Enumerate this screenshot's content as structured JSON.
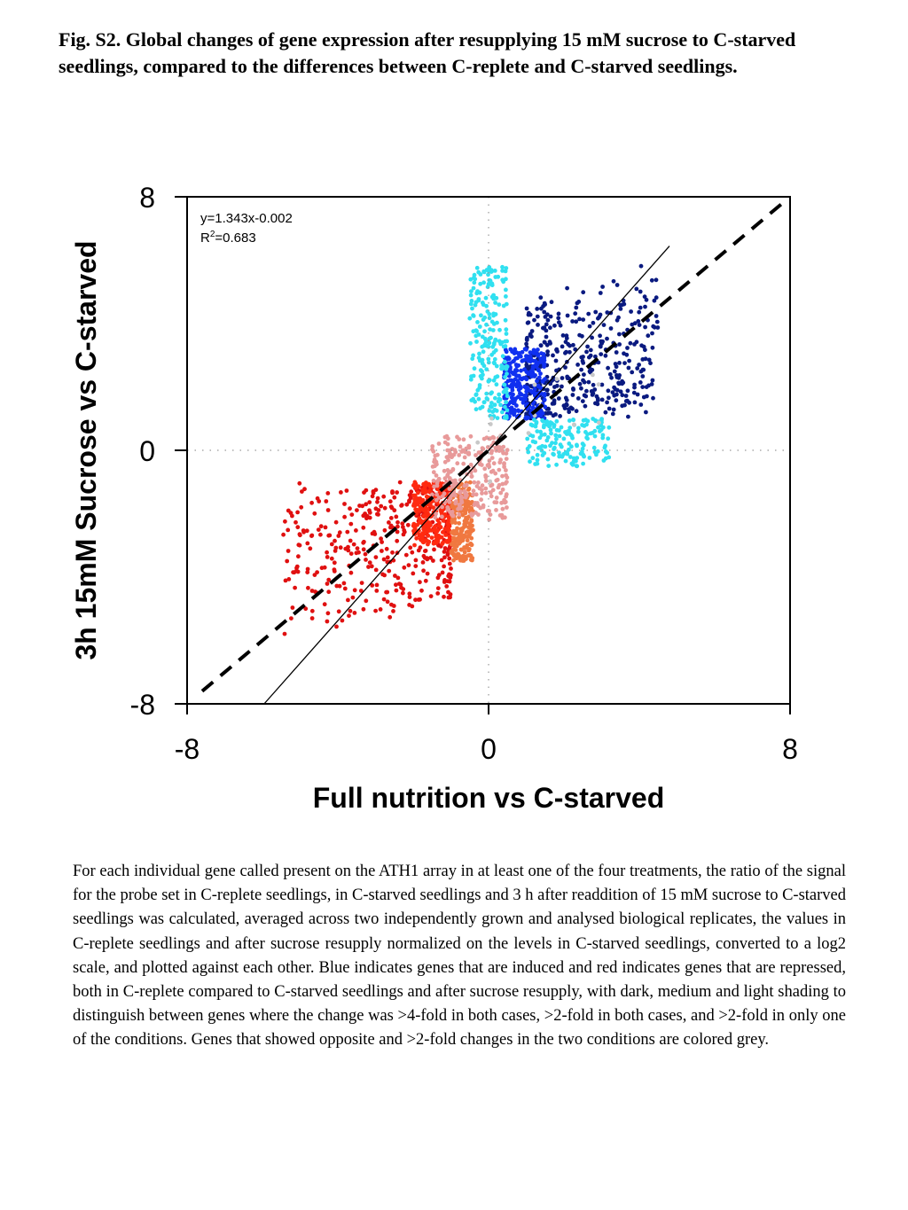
{
  "figure": {
    "caption": "Fig. S2. Global changes of gene expression after resupplying 15 mM sucrose to C-starved seedlings, compared to the differences between C-replete and C-starved seedlings.",
    "description": "For each individual gene called present on the ATH1 array in at least one of the four treatments, the ratio of the signal for the probe set in C-replete seedlings, in C-starved seedlings and 3 h after readdition of 15 mM sucrose to C-starved seedlings was calculated, averaged across two independently grown and analysed biological replicates, the values in C-replete seedlings and after sucrose resupply normalized on the levels in C-starved seedlings, converted to a log2 scale, and plotted against each other. Blue indicates genes that are induced and red indicates genes that are repressed,  both in C-replete compared to C-starved seedlings and after sucrose resupply, with dark, medium and light shading to distinguish between genes where the change was >4-fold in both cases, >2-fold in both cases, and >2-fold in only one of the conditions. Genes that showed opposite and >2-fold changes in the two conditions are colored grey."
  },
  "chart_data": {
    "type": "scatter",
    "xlabel": "Full nutrition vs C-starved",
    "ylabel": "3h 15mM Sucrose vs C-starved",
    "xlim": [
      -8,
      8
    ],
    "ylim": [
      -8,
      8
    ],
    "xticks": [
      "-8",
      "0",
      "8"
    ],
    "yticks": [
      "8",
      "0",
      "-8"
    ],
    "equation": "y=1.343x-0.002",
    "r2_label": "R",
    "r2_sup": "2",
    "r2_value": "=0.683",
    "regression": {
      "slope": 1.343,
      "intercept": -0.002
    },
    "identity_line": {
      "slope": 1,
      "intercept": 0,
      "style": "dashed"
    },
    "grid": "dotted zero lines",
    "colors": {
      "dark_blue": "#0a1a80",
      "medium_blue": "#1030f0",
      "light_blue": "#30e0f0",
      "dark_red": "#e01010",
      "medium_red": "#ff2a10",
      "orange": "#f07840",
      "light_red": "#e89a9a",
      "grey": "#c8c8c8"
    },
    "clusters": [
      {
        "name": "dark-blue",
        "color": "#0a1a80",
        "x_range": [
          1,
          4.5
        ],
        "y_range": [
          1,
          6.3
        ],
        "count": 420
      },
      {
        "name": "medium-blue",
        "color": "#1030f0",
        "x_range": [
          0.4,
          1.5
        ],
        "y_range": [
          1,
          3.2
        ],
        "count": 260
      },
      {
        "name": "light-blue-top",
        "color": "#30e0f0",
        "x_range": [
          -0.5,
          0.5
        ],
        "y_range": [
          1,
          5.8
        ],
        "count": 220
      },
      {
        "name": "light-blue-bottom",
        "color": "#30e0f0",
        "x_range": [
          1,
          3.2
        ],
        "y_range": [
          -0.5,
          1
        ],
        "count": 160
      },
      {
        "name": "dark-red",
        "color": "#e01010",
        "x_range": [
          -5.5,
          -1
        ],
        "y_range": [
          -6.2,
          -1
        ],
        "count": 420
      },
      {
        "name": "medium-red",
        "color": "#ff2a10",
        "x_range": [
          -2,
          -1
        ],
        "y_range": [
          -3,
          -1
        ],
        "count": 240
      },
      {
        "name": "orange",
        "color": "#f07840",
        "x_range": [
          -1,
          -0.4
        ],
        "y_range": [
          -3.5,
          -1
        ],
        "count": 200
      },
      {
        "name": "light-red",
        "color": "#e89a9a",
        "x_range": [
          -1.5,
          0.5
        ],
        "y_range": [
          -2.2,
          0.5
        ],
        "count": 260
      },
      {
        "name": "grey",
        "color": "#c8c8c8",
        "x_range": [
          -0.3,
          3
        ],
        "y_range": [
          -1.4,
          2.5
        ],
        "count": 14
      }
    ]
  }
}
